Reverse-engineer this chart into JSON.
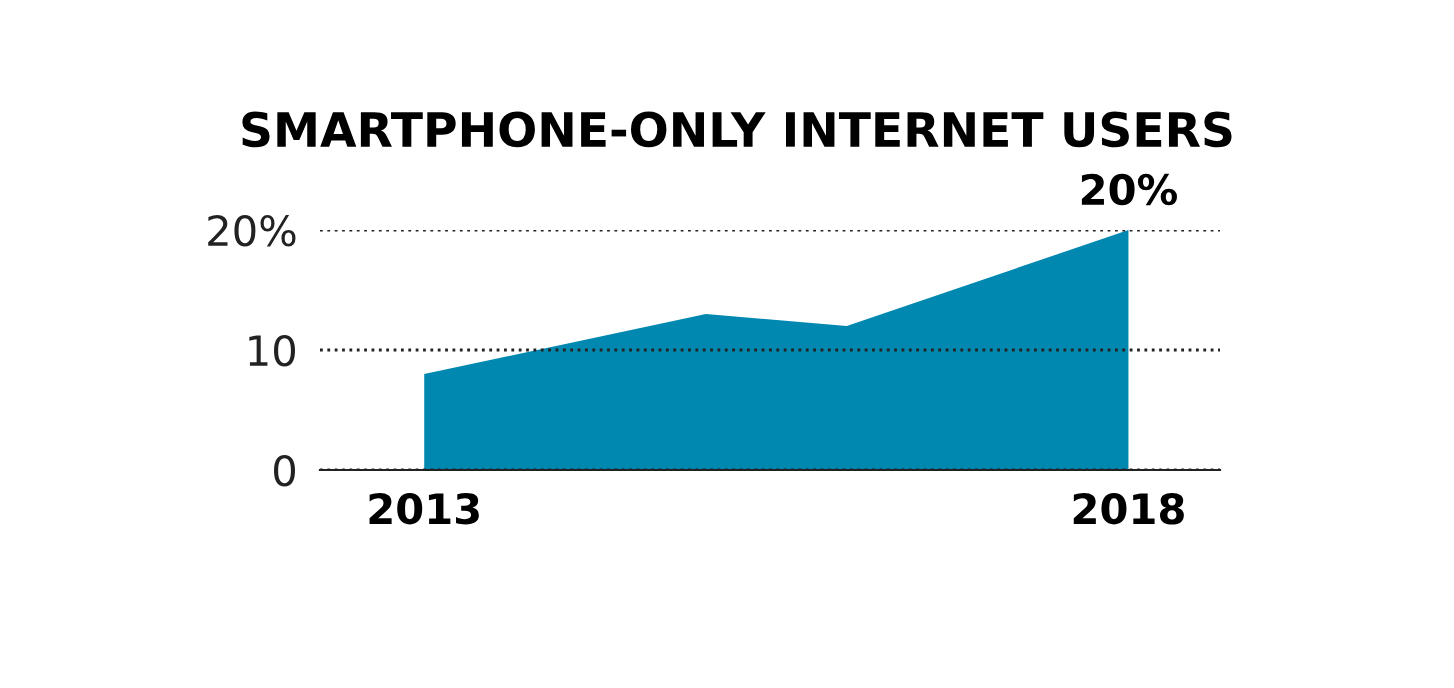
{
  "chart_data": {
    "type": "area",
    "title": "SMARTPHONE-ONLY INTERNET USERS",
    "x": [
      2013,
      2015,
      2016,
      2018
    ],
    "series": [
      {
        "color": "#0088b0",
        "values": [
          8,
          13,
          12,
          20
        ]
      }
    ],
    "xlim": [
      2012.26,
      2018.65
    ],
    "xticks": [
      2013,
      2018
    ],
    "ylim": [
      0,
      20
    ],
    "yticks": [
      0,
      10,
      {
        "value": 20,
        "label": "20%"
      }
    ],
    "grid": "y",
    "line_style": "dotted",
    "annotations": [
      {
        "text": "20%",
        "x": 2018,
        "y": 20
      }
    ]
  }
}
